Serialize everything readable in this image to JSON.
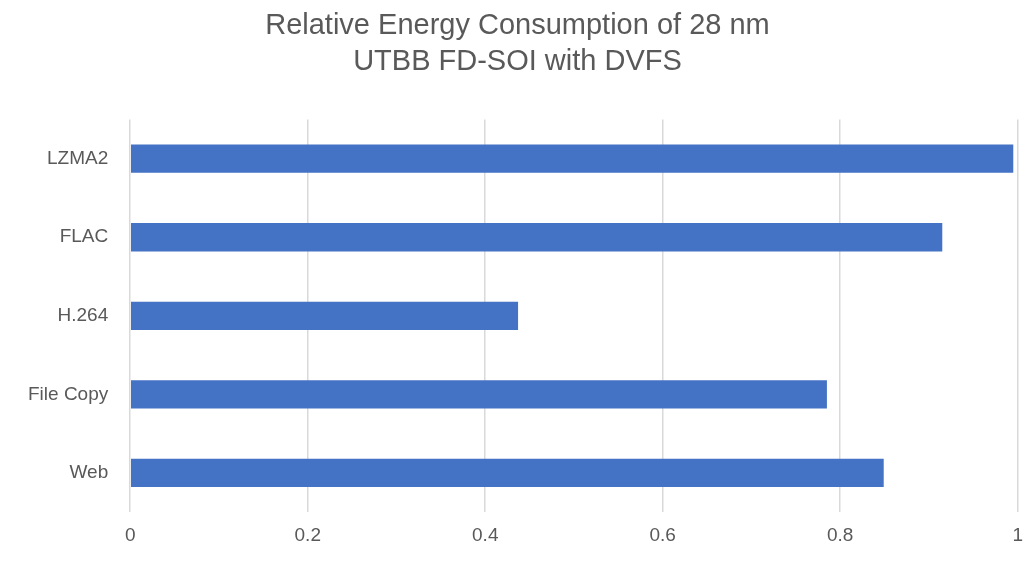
{
  "chart_data": {
    "type": "bar",
    "orientation": "horizontal",
    "title": "Relative Energy Consumption of 28 nm UTBB FD-SOI with DVFS",
    "categories": [
      "LZMA2",
      "FLAC",
      "H.264",
      "File Copy",
      "Web"
    ],
    "values": [
      0.995,
      0.915,
      0.437,
      0.785,
      0.849
    ],
    "color": "#4472c4",
    "xlim": [
      0,
      1
    ],
    "xticks": [
      0,
      0.2,
      0.4,
      0.6,
      0.8,
      1
    ],
    "grid": "x"
  }
}
